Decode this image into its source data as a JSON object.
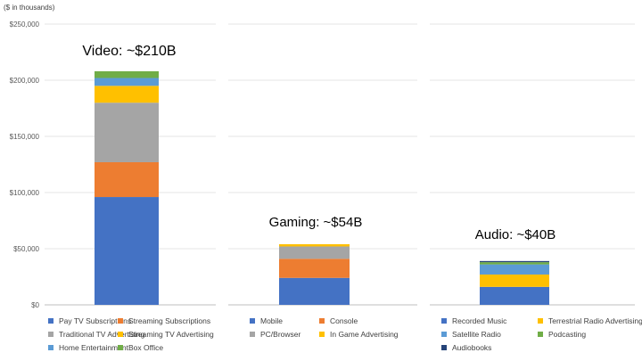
{
  "chart_data": {
    "type": "bar",
    "stacked": true,
    "unit_label": "($ in thousands)",
    "y_ticks": [
      "$0",
      "$50,000",
      "$100,000",
      "$150,000",
      "$200,000",
      "$250,000"
    ],
    "ylim": [
      0,
      250000
    ],
    "grid": true,
    "panels": [
      {
        "title": "Video: ~$210B",
        "series": [
          {
            "name": "Pay TV Subscriptions",
            "value": 96000,
            "color": "#4472C4"
          },
          {
            "name": "Streaming Subscriptions",
            "value": 31000,
            "color": "#ED7D31"
          },
          {
            "name": "Traditional TV Advertising",
            "value": 53000,
            "color": "#A5A5A5"
          },
          {
            "name": "Streaming TV Advertising",
            "value": 15000,
            "color": "#FFC000"
          },
          {
            "name": "Home Entertainment",
            "value": 7000,
            "color": "#5B9BD5"
          },
          {
            "name": "Box Office",
            "value": 6000,
            "color": "#70AD47"
          }
        ]
      },
      {
        "title": "Gaming: ~$54B",
        "series": [
          {
            "name": "Mobile",
            "value": 24000,
            "color": "#4472C4"
          },
          {
            "name": "Console",
            "value": 17000,
            "color": "#ED7D31"
          },
          {
            "name": "PC/Browser",
            "value": 11000,
            "color": "#A5A5A5"
          },
          {
            "name": "In Game Advertising",
            "value": 2000,
            "color": "#FFC000"
          }
        ]
      },
      {
        "title": "Audio: ~$40B",
        "series": [
          {
            "name": "Recorded Music",
            "value": 16000,
            "color": "#4472C4"
          },
          {
            "name": "Terrestrial Radio Advertising",
            "value": 11000,
            "color": "#FFC000"
          },
          {
            "name": "Satellite Radio",
            "value": 9000,
            "color": "#5B9BD5"
          },
          {
            "name": "Podcasting",
            "value": 2000,
            "color": "#70AD47"
          },
          {
            "name": "Audiobooks",
            "value": 1000,
            "color": "#264478"
          }
        ]
      }
    ]
  }
}
